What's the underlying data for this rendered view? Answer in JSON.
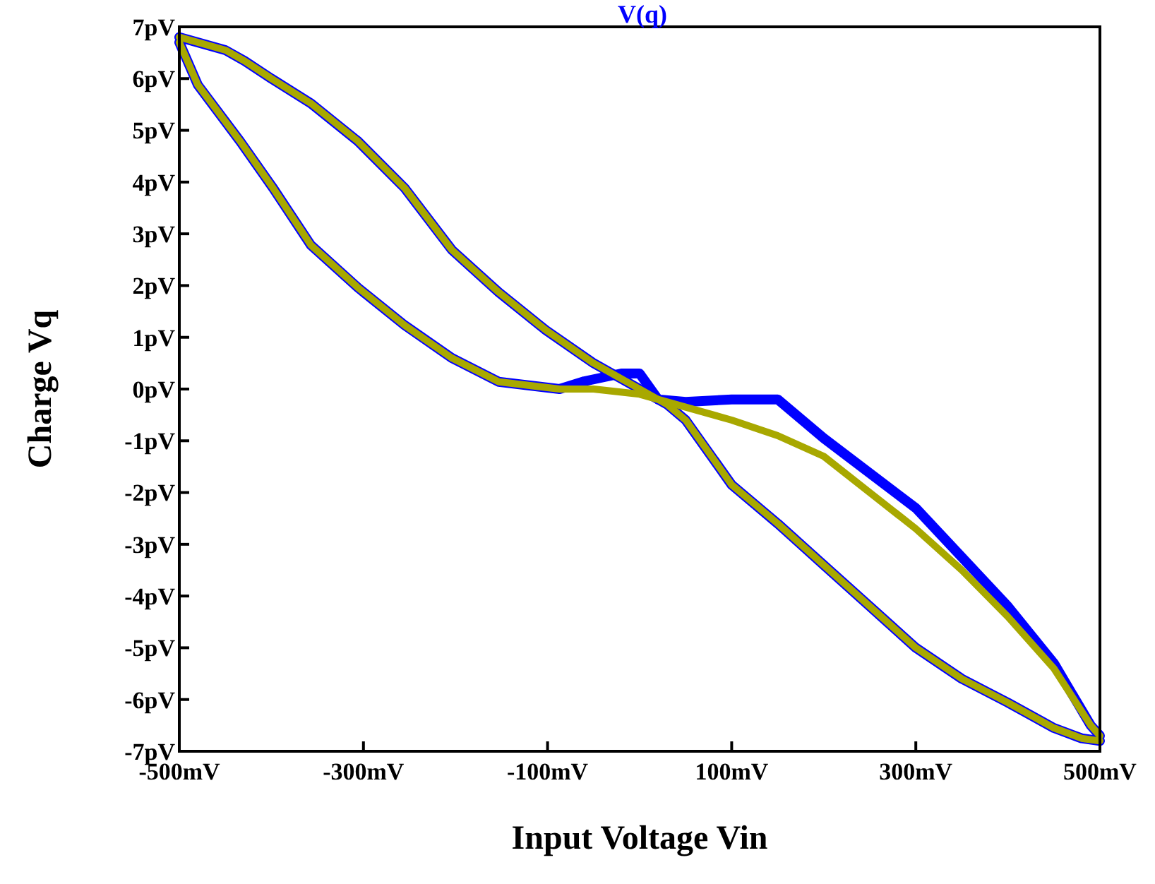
{
  "chart_data": {
    "type": "line",
    "title": "V(q)",
    "xlabel": "Input Voltage Vin",
    "ylabel": "Charge Vq",
    "xlim": [
      -500,
      500
    ],
    "ylim": [
      -7,
      7
    ],
    "xticks": [
      {
        "value": -500,
        "label": "-500mV"
      },
      {
        "value": -300,
        "label": "-300mV"
      },
      {
        "value": -100,
        "label": "-100mV"
      },
      {
        "value": 100,
        "label": "100mV"
      },
      {
        "value": 300,
        "label": "300mV"
      },
      {
        "value": 500,
        "label": "500mV"
      }
    ],
    "yticks": [
      {
        "value": -7,
        "label": "-7pV"
      },
      {
        "value": -6,
        "label": "-6pV"
      },
      {
        "value": -5,
        "label": "-5pV"
      },
      {
        "value": -4,
        "label": "-4pV"
      },
      {
        "value": -3,
        "label": "-3pV"
      },
      {
        "value": -2,
        "label": "-2pV"
      },
      {
        "value": -1,
        "label": "-1pV"
      },
      {
        "value": 0,
        "label": "0pV"
      },
      {
        "value": 1,
        "label": "1pV"
      },
      {
        "value": 2,
        "label": "2pV"
      },
      {
        "value": 3,
        "label": "3pV"
      },
      {
        "value": 4,
        "label": "4pV"
      },
      {
        "value": 5,
        "label": "5pV"
      },
      {
        "value": 6,
        "label": "6pV"
      },
      {
        "value": 7,
        "label": "7pV"
      }
    ],
    "grid": false,
    "marker": "none",
    "line_style": "solid",
    "series": [
      {
        "color": "#0000ff",
        "x": [
          -500,
          -450,
          -429,
          -400,
          -357,
          -306,
          -255,
          -204,
          -153,
          -102,
          -51,
          0,
          30,
          50,
          100,
          150,
          200,
          250,
          300,
          350,
          400,
          450,
          480,
          500
        ],
        "values": [
          6.8,
          6.55,
          6.34,
          6.0,
          5.52,
          4.79,
          3.88,
          2.69,
          1.87,
          1.14,
          0.51,
          0.0,
          -0.3,
          -0.6,
          -1.85,
          -2.6,
          -3.4,
          -4.2,
          -5.0,
          -5.6,
          -6.06,
          -6.55,
          -6.75,
          -6.8
        ]
      },
      {
        "color": "#0000ff",
        "x": [
          -500,
          -480,
          -434,
          -398,
          -357,
          -306,
          -255,
          -204,
          -153,
          -87,
          -60,
          -20,
          0,
          20,
          50,
          100,
          150,
          200,
          300,
          400,
          450,
          490,
          500
        ],
        "values": [
          6.7,
          5.88,
          4.79,
          3.88,
          2.78,
          1.96,
          1.23,
          0.6,
          0.14,
          0.0,
          0.15,
          0.3,
          0.3,
          -0.2,
          -0.25,
          -0.2,
          -0.2,
          -0.95,
          -2.3,
          -4.2,
          -5.3,
          -6.5,
          -6.7
        ]
      },
      {
        "color": "#a8a800",
        "x": [
          -500,
          -450,
          -429,
          -400,
          -357,
          -306,
          -255,
          -204,
          -153,
          -102,
          -51,
          0,
          30,
          50,
          100,
          150,
          200,
          250,
          300,
          350,
          400,
          450,
          480,
          500
        ],
        "values": [
          6.8,
          6.55,
          6.34,
          6.0,
          5.52,
          4.79,
          3.88,
          2.69,
          1.87,
          1.14,
          0.51,
          0.0,
          -0.3,
          -0.6,
          -1.85,
          -2.6,
          -3.4,
          -4.2,
          -5.0,
          -5.6,
          -6.06,
          -6.55,
          -6.75,
          -6.8
        ]
      },
      {
        "color": "#a8a800",
        "x": [
          -500,
          -480,
          -434,
          -398,
          -357,
          -306,
          -255,
          -204,
          -153,
          -87,
          -50,
          0,
          50,
          100,
          150,
          200,
          250,
          300,
          350,
          400,
          450,
          490,
          500
        ],
        "values": [
          6.7,
          5.88,
          4.79,
          3.88,
          2.78,
          1.96,
          1.23,
          0.6,
          0.14,
          0.0,
          0.0,
          -0.1,
          -0.35,
          -0.6,
          -0.9,
          -1.3,
          -2.0,
          -2.7,
          -3.5,
          -4.4,
          -5.4,
          -6.5,
          -6.7
        ]
      }
    ]
  }
}
